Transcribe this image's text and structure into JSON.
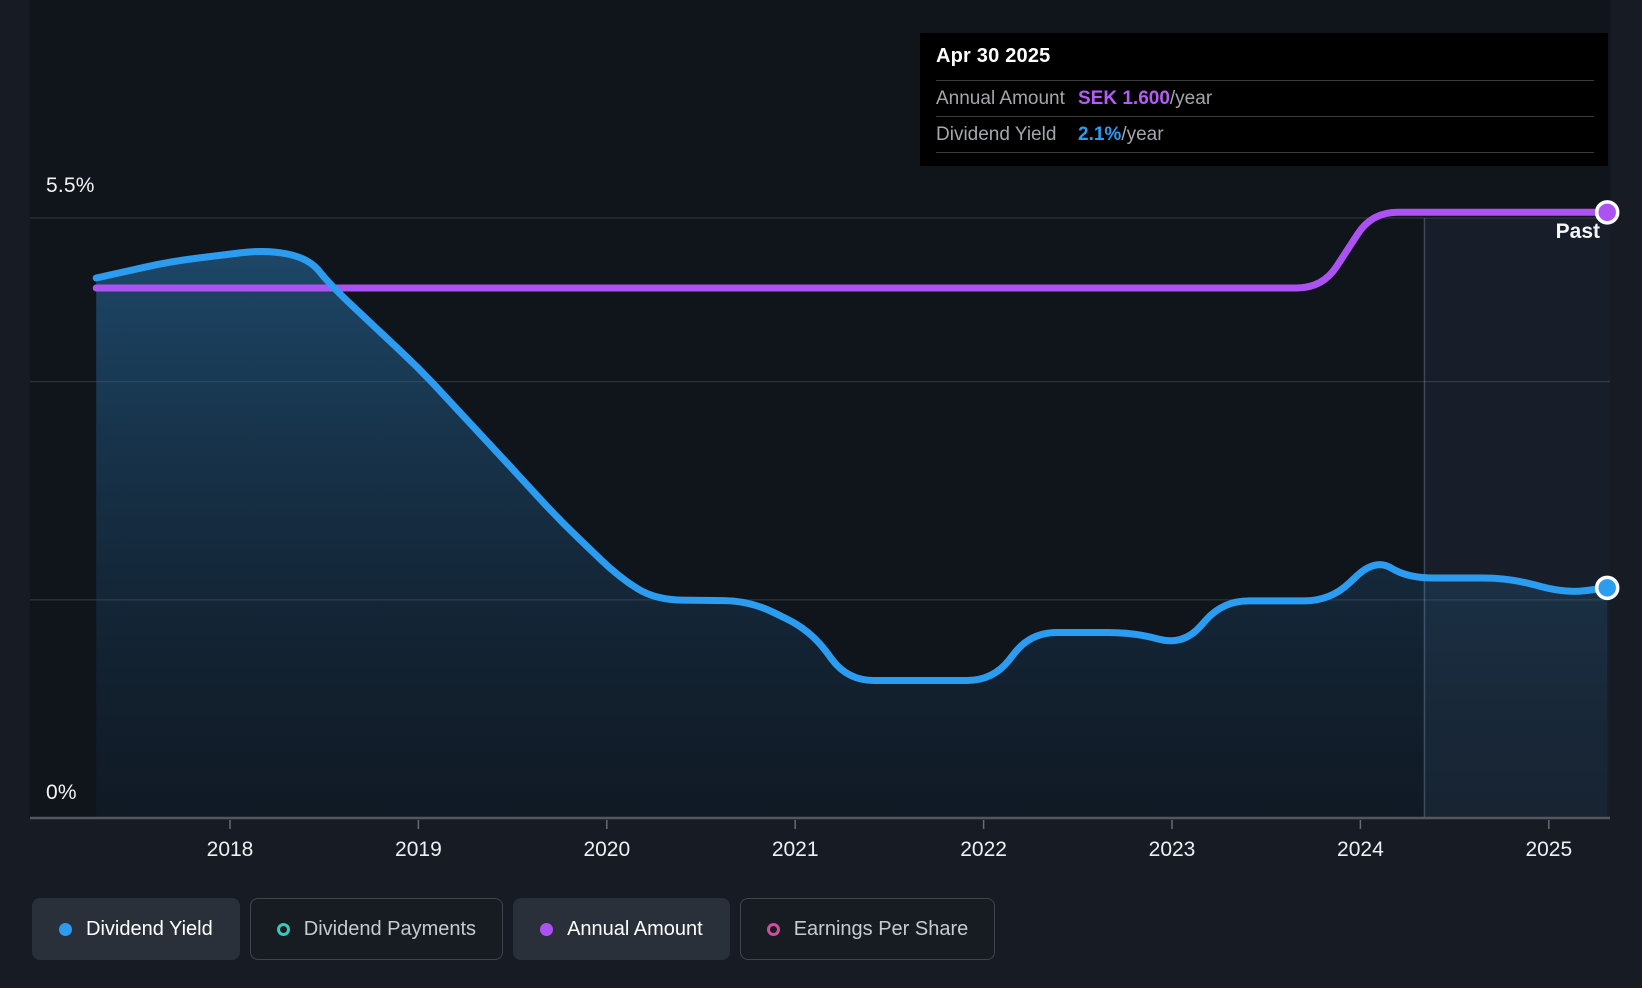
{
  "past_label": "Past",
  "axis": {
    "y_top_label": "5.5%",
    "y_bottom_label": "0%",
    "year_labels": [
      "2018",
      "2019",
      "2020",
      "2021",
      "2022",
      "2023",
      "2024",
      "2025"
    ]
  },
  "tooltip": {
    "date": "Apr 30 2025",
    "rows": [
      {
        "label": "Annual Amount",
        "value": "SEK 1.600",
        "suffix": "/year",
        "color": "#b55cf6"
      },
      {
        "label": "Dividend Yield",
        "value": "2.1%",
        "suffix": "/year",
        "color": "#2b9cf0"
      }
    ]
  },
  "legend": [
    {
      "label": "Dividend Yield",
      "marker": "filled",
      "color": "#2b9cf0",
      "active": true
    },
    {
      "label": "Dividend Payments",
      "marker": "hollow",
      "color": "#38c9b9",
      "active": false
    },
    {
      "label": "Annual Amount",
      "marker": "filled",
      "color": "#ad52f2",
      "active": true
    },
    {
      "label": "Earnings Per Share",
      "marker": "hollow",
      "color": "#cf4f9c",
      "active": false
    }
  ],
  "chart_data": {
    "type": "line",
    "title": "Dividend yield history (tooltip at Apr 30 2025)",
    "x_range": [
      2017.29,
      2025.32
    ],
    "x_ticks": [
      2018,
      2019,
      2020,
      2021,
      2022,
      2023,
      2024,
      2025
    ],
    "y_axis": {
      "unit": "percent",
      "range": [
        0,
        5.5
      ],
      "gridlines_pct": [
        4,
        2
      ],
      "top_gridline_pct": 5.5,
      "baseline_pct": 0
    },
    "past_divider_year": 2024.34,
    "legend_position": "bottom",
    "grid": true,
    "series": [
      {
        "name": "Dividend Yield",
        "color": "#2b9cf0",
        "unit": "percent_per_year",
        "end_marker": true,
        "area_fill": true,
        "points": [
          [
            2017.29,
            4.95
          ],
          [
            2017.68,
            5.1
          ],
          [
            2018.19,
            5.21
          ],
          [
            2018.42,
            5.13
          ],
          [
            2018.53,
            4.89
          ],
          [
            2019.01,
            4.11
          ],
          [
            2019.43,
            3.33
          ],
          [
            2019.75,
            2.73
          ],
          [
            2020.07,
            2.2
          ],
          [
            2020.26,
            2.0
          ],
          [
            2020.76,
            1.99
          ],
          [
            2021.08,
            1.72
          ],
          [
            2021.28,
            1.26
          ],
          [
            2022.05,
            1.26
          ],
          [
            2022.25,
            1.7
          ],
          [
            2022.8,
            1.7
          ],
          [
            2023.06,
            1.58
          ],
          [
            2023.27,
            1.99
          ],
          [
            2023.84,
            1.99
          ],
          [
            2024.08,
            2.38
          ],
          [
            2024.25,
            2.2
          ],
          [
            2024.79,
            2.2
          ],
          [
            2025.09,
            2.06
          ],
          [
            2025.31,
            2.11
          ]
        ]
      },
      {
        "name": "Annual Amount",
        "color": "#ad52f2",
        "unit": "SEK_per_year",
        "end_marker": true,
        "area_fill": false,
        "pct_equiv_per_sek": 3.47,
        "points": [
          [
            2017.29,
            1.4
          ],
          [
            2023.8,
            1.4
          ],
          [
            2024.06,
            1.6
          ],
          [
            2025.31,
            1.6
          ]
        ]
      }
    ],
    "colors": {
      "background": "#171b23",
      "plot_background": "#10141b",
      "gridline": "#2d3239",
      "baseline": "#53585e",
      "past_overlay": "rgba(125,175,225,0.07)",
      "past_divider": "rgba(150,185,220,0.30)",
      "area_top": "rgba(43,125,185,0.50)",
      "area_bottom": "rgba(18,48,75,0.20)"
    }
  }
}
